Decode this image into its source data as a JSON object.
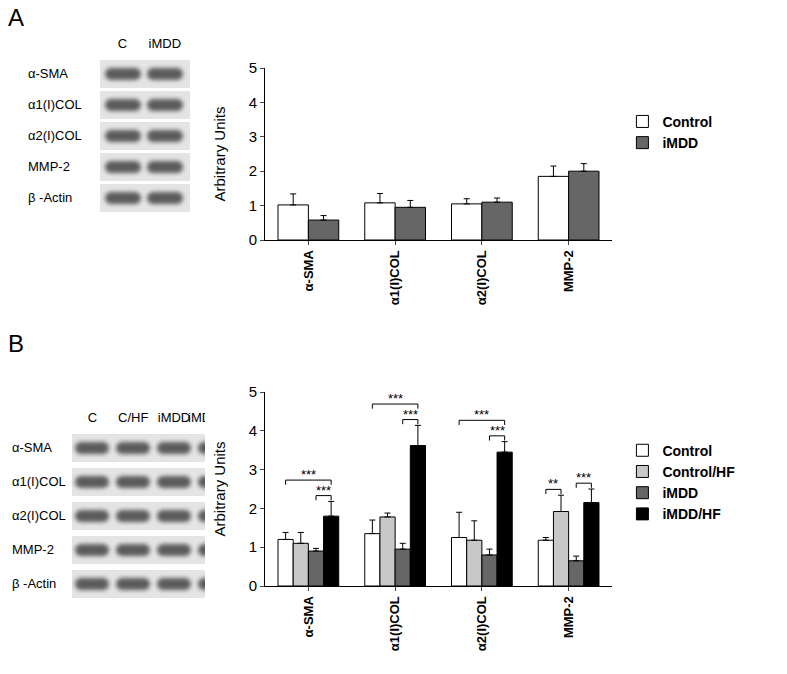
{
  "figure": {
    "panels": [
      {
        "label": "A",
        "blot": {
          "lanes": [
            "C",
            "iMDD"
          ],
          "rows": [
            "α-SMA",
            "α1(I)COL",
            "α2(I)COL",
            "MMP-2",
            "β -Actin"
          ]
        }
      },
      {
        "label": "B",
        "blot": {
          "lanes": [
            "C",
            "C/HF",
            "iMDD",
            "iMDD/HF"
          ],
          "rows": [
            "α-SMA",
            "α1(I)COL",
            "α2(I)COL",
            "MMP-2",
            "β -Actin"
          ]
        }
      }
    ]
  },
  "chart_data": [
    {
      "type": "bar",
      "y_label": "Arbitrary Units",
      "categories": [
        "α-SMA",
        "α1(I)COL",
        "α2(I)COL",
        "MMP-2"
      ],
      "series": [
        {
          "name": "Control",
          "color": "#ffffff",
          "values": [
            1.02,
            1.08,
            1.05,
            1.85
          ],
          "errors": [
            0.32,
            0.27,
            0.15,
            0.3
          ]
        },
        {
          "name": "iMDD",
          "color": "#666666",
          "values": [
            0.58,
            0.95,
            1.1,
            2.0
          ],
          "errors": [
            0.13,
            0.2,
            0.12,
            0.22
          ]
        }
      ],
      "ylim": [
        0,
        5
      ],
      "yticks": [
        0,
        1,
        2,
        3,
        4,
        5
      ],
      "grid": false,
      "legend": "right"
    },
    {
      "type": "bar",
      "y_label": "Arbitrary Units",
      "categories": [
        "α-SMA",
        "α1(I)COL",
        "α2(I)COL",
        "MMP-2"
      ],
      "series": [
        {
          "name": "Control",
          "color": "#ffffff",
          "values": [
            1.2,
            1.35,
            1.25,
            1.18
          ],
          "errors": [
            0.18,
            0.35,
            0.65,
            0.07
          ]
        },
        {
          "name": "Control/HF",
          "color": "#c8c8c8",
          "values": [
            1.1,
            1.78,
            1.18,
            1.92
          ],
          "errors": [
            0.28,
            0.1,
            0.5,
            0.42
          ]
        },
        {
          "name": "iMDD",
          "color": "#666666",
          "values": [
            0.9,
            0.95,
            0.8,
            0.65
          ],
          "errors": [
            0.07,
            0.15,
            0.15,
            0.12
          ]
        },
        {
          "name": "iMDD/HF",
          "color": "#000000",
          "values": [
            1.8,
            3.62,
            3.45,
            2.15
          ],
          "errors": [
            0.38,
            0.52,
            0.27,
            0.35
          ]
        }
      ],
      "significance": [
        {
          "category": "α-SMA",
          "from": "Control",
          "to": "iMDD/HF",
          "label": "***"
        },
        {
          "category": "α-SMA",
          "from": "iMDD",
          "to": "iMDD/HF",
          "label": "***"
        },
        {
          "category": "α1(I)COL",
          "from": "Control",
          "to": "iMDD/HF",
          "label": "***"
        },
        {
          "category": "α1(I)COL",
          "from": "iMDD",
          "to": "iMDD/HF",
          "label": "***"
        },
        {
          "category": "α2(I)COL",
          "from": "Control",
          "to": "iMDD/HF",
          "label": "***"
        },
        {
          "category": "α2(I)COL",
          "from": "iMDD",
          "to": "iMDD/HF",
          "label": "***"
        },
        {
          "category": "MMP-2",
          "from": "Control",
          "to": "Control/HF",
          "label": "**"
        },
        {
          "category": "MMP-2",
          "from": "iMDD",
          "to": "iMDD/HF",
          "label": "***"
        }
      ],
      "ylim": [
        0,
        5
      ],
      "yticks": [
        0,
        1,
        2,
        3,
        4,
        5
      ],
      "grid": false,
      "legend": "right"
    }
  ]
}
